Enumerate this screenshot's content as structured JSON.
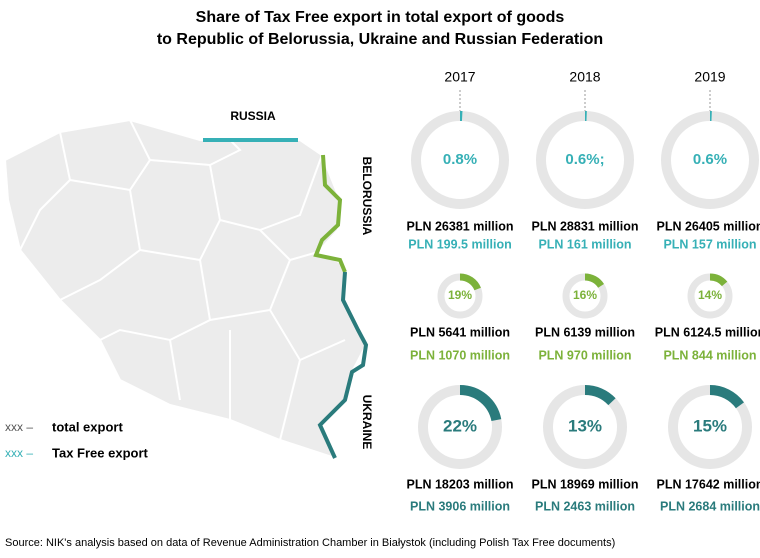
{
  "title": [
    "Share of Tax Free export in total export of goods",
    "to Republic of Belorussia, Ukraine and Russian Federation"
  ],
  "years": [
    "2017",
    "2018",
    "2019"
  ],
  "map_labels": {
    "russia": "RUSSIA",
    "belorussia": "BELORUSSIA",
    "ukraine": "UKRAINE"
  },
  "legend": [
    {
      "marker": "xxx –",
      "label": "total export"
    },
    {
      "marker": "xxx –",
      "label": "Tax Free export"
    }
  ],
  "source": "Source: NIK's analysis based on data of Revenue Administration Chamber in Białystok (including Polish Tax Free documents)",
  "chart_data": [
    {
      "type": "donut",
      "values": [
        0.8
      ],
      "value_labels": [
        "0.8%"
      ],
      "total_export": "PLN 26381 million",
      "tax_free_export": "PLN 199.5 million",
      "color": "#36b0b6"
    },
    {
      "type": "donut",
      "values": [
        0.6
      ],
      "value_labels": [
        "0.6%;"
      ],
      "total_export": "PLN 28831 million",
      "tax_free_export": "PLN 161 million",
      "color": "#36b0b6"
    },
    {
      "type": "donut",
      "values": [
        0.6
      ],
      "value_labels": [
        "0.6%"
      ],
      "total_export": "PLN 26405 million",
      "tax_free_export": "PLN 157 million",
      "color": "#36b0b6"
    },
    {
      "type": "donut",
      "values": [
        19
      ],
      "value_labels": [
        "19%"
      ],
      "total_export": "PLN 5641 million",
      "tax_free_export": "PLN 1070 million",
      "color": "#7cb23a"
    },
    {
      "type": "donut",
      "values": [
        16
      ],
      "value_labels": [
        "16%"
      ],
      "total_export": "PLN 6139 million",
      "tax_free_export": "PLN 970 million",
      "color": "#7cb23a"
    },
    {
      "type": "donut",
      "values": [
        14
      ],
      "value_labels": [
        "14%"
      ],
      "total_export": "PLN 6124.5 million",
      "tax_free_export": "PLN 844 million",
      "color": "#7cb23a"
    },
    {
      "type": "donut",
      "values": [
        22
      ],
      "value_labels": [
        "22%"
      ],
      "total_export": "PLN 18203 million",
      "tax_free_export": "PLN 3906 million",
      "color": "#2a7b7c"
    },
    {
      "type": "donut",
      "values": [
        13
      ],
      "value_labels": [
        "13%"
      ],
      "total_export": "PLN 18969 million",
      "tax_free_export": "PLN 2463 million",
      "color": "#2a7b7c"
    },
    {
      "type": "donut",
      "values": [
        15
      ],
      "value_labels": [
        "15%"
      ],
      "total_export": "PLN 17642 million",
      "tax_free_export": "PLN 2684 million",
      "color": "#2a7b7c"
    }
  ]
}
